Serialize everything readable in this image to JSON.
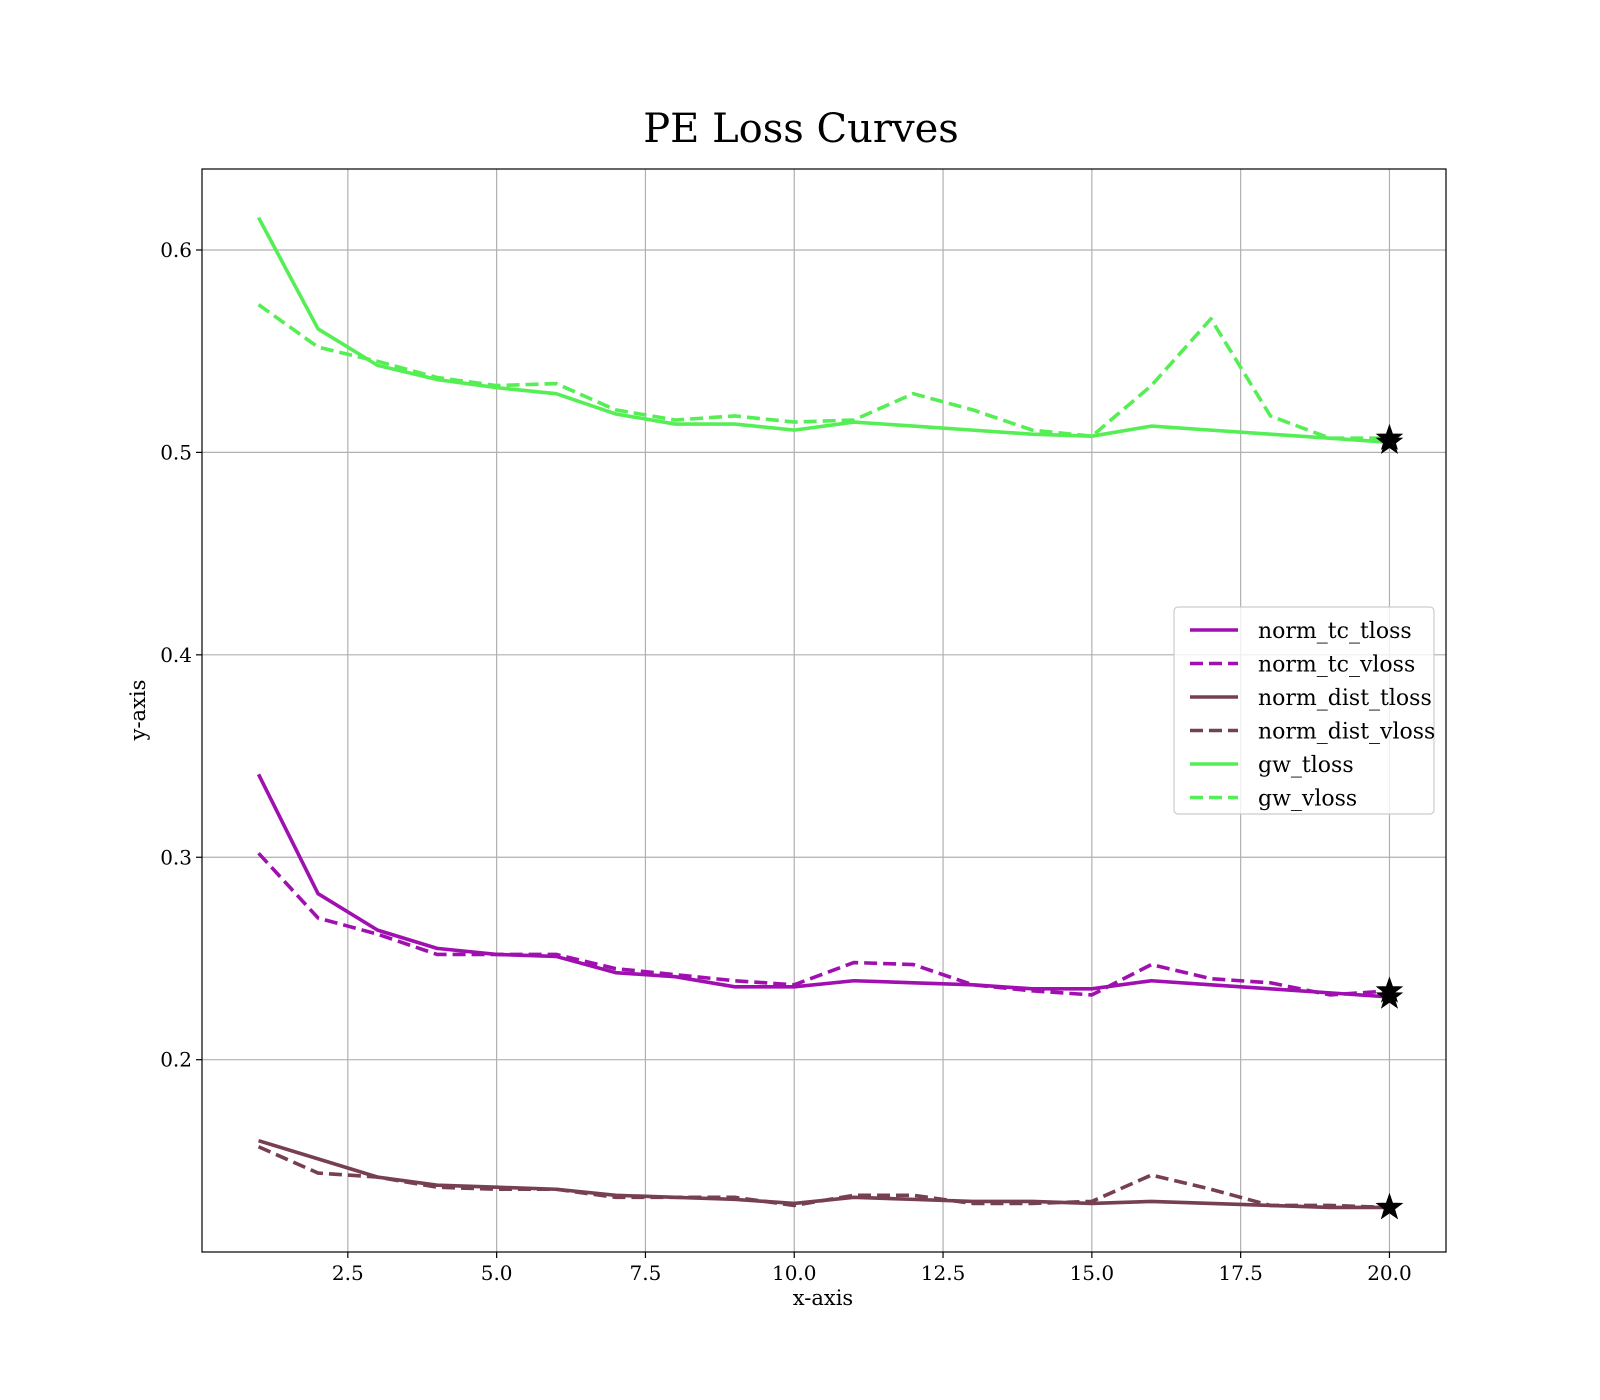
{
  "chart_data": {
    "type": "line",
    "title": "PE Loss Curves",
    "xlabel": "x-axis",
    "ylabel": "y-axis",
    "xlim": [
      0.05,
      20.95
    ],
    "ylim": [
      0.105,
      0.64
    ],
    "xticks": [
      2.5,
      5.0,
      7.5,
      10.0,
      12.5,
      15.0,
      17.5,
      20.0
    ],
    "xtick_labels": [
      "2.5",
      "5.0",
      "7.5",
      "10.0",
      "12.5",
      "15.0",
      "17.5",
      "20.0"
    ],
    "yticks": [
      0.2,
      0.3,
      0.4,
      0.5,
      0.6
    ],
    "ytick_labels": [
      "0.2",
      "0.3",
      "0.4",
      "0.5",
      "0.6"
    ],
    "grid": true,
    "legend_position": "center-right",
    "x": [
      1,
      2,
      3,
      4,
      5,
      6,
      7,
      8,
      9,
      10,
      11,
      12,
      13,
      14,
      15,
      16,
      17,
      18,
      19,
      20
    ],
    "series": [
      {
        "name": "norm_tc_tloss",
        "color": "#a010b0",
        "style": "solid",
        "values": [
          0.341,
          0.282,
          0.264,
          0.255,
          0.252,
          0.251,
          0.243,
          0.241,
          0.236,
          0.236,
          0.239,
          0.238,
          0.237,
          0.235,
          0.235,
          0.239,
          0.237,
          0.235,
          0.233,
          0.231
        ]
      },
      {
        "name": "norm_tc_vloss",
        "color": "#a010b0",
        "style": "dashed",
        "values": [
          0.302,
          0.27,
          0.262,
          0.252,
          0.252,
          0.252,
          0.245,
          0.242,
          0.239,
          0.237,
          0.248,
          0.247,
          0.237,
          0.234,
          0.232,
          0.247,
          0.24,
          0.238,
          0.232,
          0.234
        ]
      },
      {
        "name": "norm_dist_tloss",
        "color": "#774050",
        "style": "solid",
        "values": [
          0.16,
          0.151,
          0.142,
          0.138,
          0.137,
          0.136,
          0.133,
          0.132,
          0.131,
          0.129,
          0.132,
          0.131,
          0.13,
          0.13,
          0.129,
          0.13,
          0.129,
          0.128,
          0.127,
          0.127
        ]
      },
      {
        "name": "norm_dist_vloss",
        "color": "#774050",
        "style": "dashed",
        "values": [
          0.157,
          0.144,
          0.142,
          0.137,
          0.136,
          0.136,
          0.132,
          0.132,
          0.132,
          0.128,
          0.133,
          0.133,
          0.129,
          0.129,
          0.13,
          0.143,
          0.136,
          0.128,
          0.128,
          0.127
        ]
      },
      {
        "name": "gw_tloss",
        "color": "#55ee55",
        "style": "solid",
        "values": [
          0.616,
          0.561,
          0.543,
          0.536,
          0.532,
          0.529,
          0.519,
          0.514,
          0.514,
          0.511,
          0.515,
          0.513,
          0.511,
          0.509,
          0.508,
          0.513,
          0.511,
          0.509,
          0.507,
          0.505
        ]
      },
      {
        "name": "gw_vloss",
        "color": "#55ee55",
        "style": "dashed",
        "values": [
          0.573,
          0.552,
          0.545,
          0.537,
          0.533,
          0.534,
          0.521,
          0.516,
          0.518,
          0.515,
          0.516,
          0.529,
          0.521,
          0.511,
          0.508,
          0.533,
          0.566,
          0.518,
          0.507,
          0.507
        ]
      }
    ],
    "end_markers": {
      "symbol": "star",
      "color": "#000000",
      "x": 20
    }
  }
}
